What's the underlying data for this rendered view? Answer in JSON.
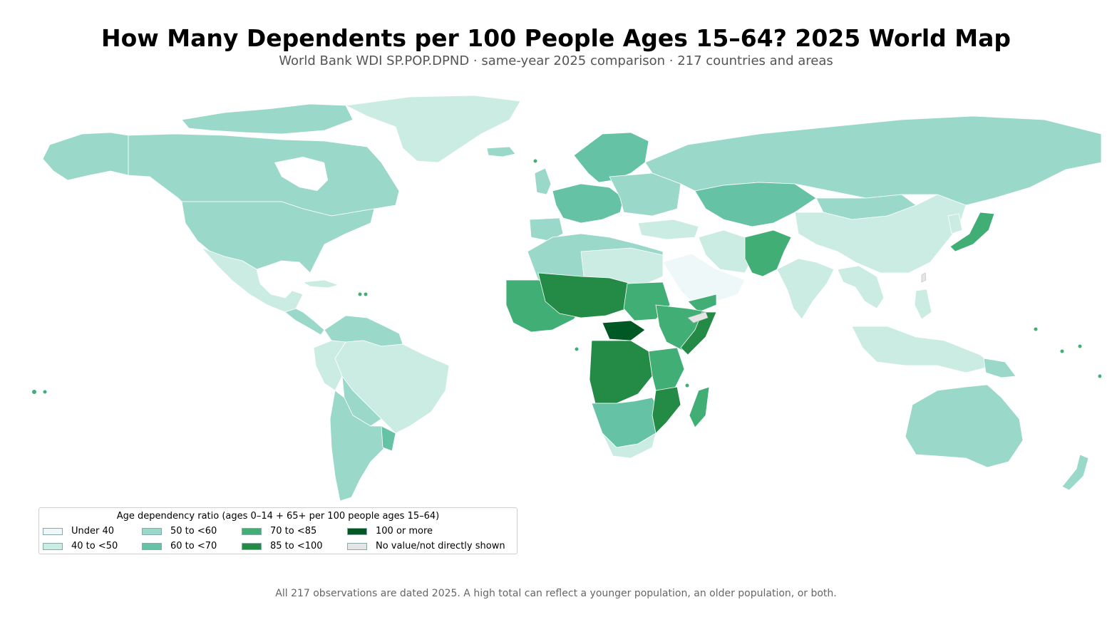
{
  "header": {
    "title": "How Many Dependents per 100 People Ages 15–64? 2025 World Map",
    "subtitle": "World Bank WDI SP.POP.DPND · same-year 2025 comparison · 217 countries and areas"
  },
  "legend": {
    "title": "Age dependency ratio (ages 0–14 + 65+ per 100 people ages 15–64)",
    "items": [
      {
        "label": "Under 40",
        "color": "#eef8f8"
      },
      {
        "label": "40 to <50",
        "color": "#cbece3"
      },
      {
        "label": "50 to <60",
        "color": "#9ad8ca"
      },
      {
        "label": "60 to <70",
        "color": "#66c2a5"
      },
      {
        "label": "70 to <85",
        "color": "#41ae76"
      },
      {
        "label": "85 to <100",
        "color": "#238b45"
      },
      {
        "label": "100 or more",
        "color": "#005824"
      },
      {
        "label": "No value/not directly shown",
        "color": "#e5e5e5"
      }
    ]
  },
  "footnote": "All 217 observations are dated 2025. A high total can reflect a younger population, an older population, or both.",
  "colors": {
    "ocean": "#ffffff",
    "border": "#ffffff"
  }
}
